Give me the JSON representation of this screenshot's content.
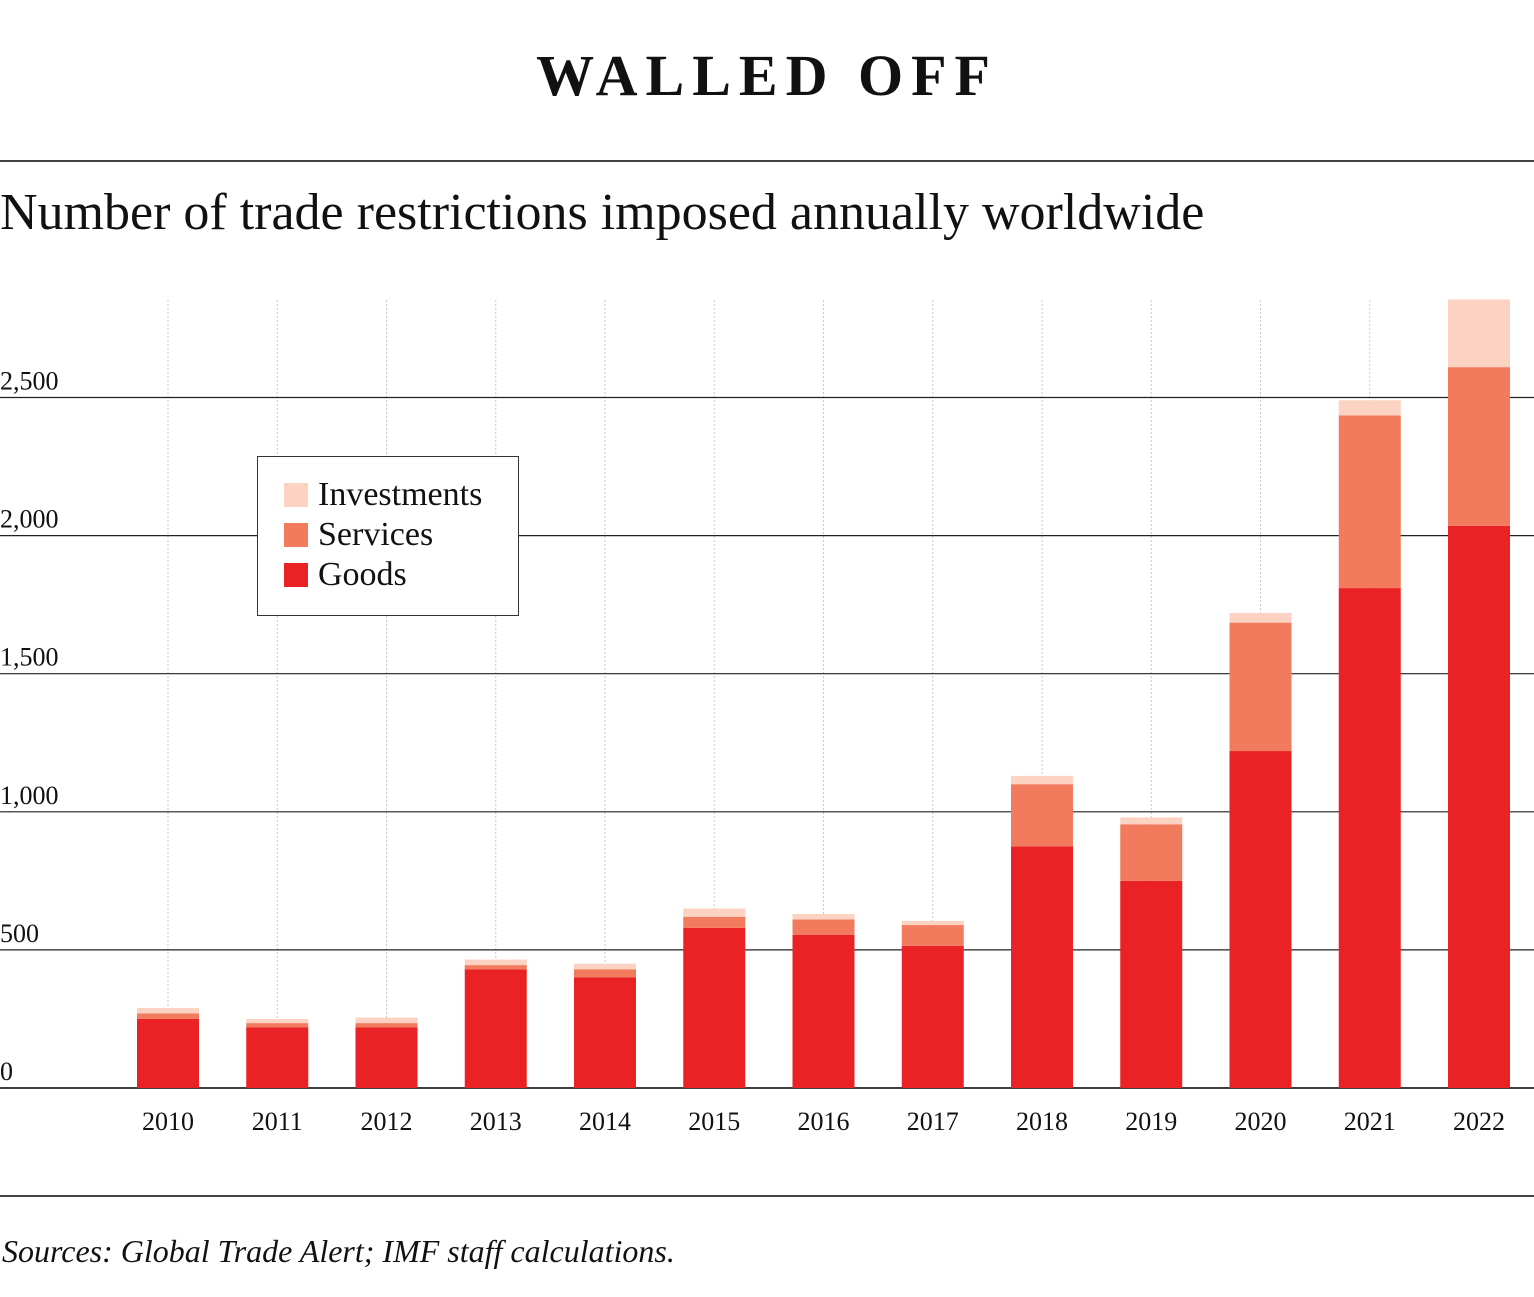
{
  "header": {
    "title": "WALLED OFF",
    "subtitle": "Number of trade restrictions imposed annually worldwide"
  },
  "footer": {
    "source": "Sources: Global Trade Alert; IMF staff calculations."
  },
  "colors": {
    "goods": "#ea2226",
    "services": "#f27b5d",
    "investments": "#fcd3c2",
    "grid": "#222222",
    "vgrid": "#c8c8c8"
  },
  "chart_data": {
    "type": "bar",
    "stacked": true,
    "categories": [
      "2010",
      "2011",
      "2012",
      "2013",
      "2014",
      "2015",
      "2016",
      "2017",
      "2018",
      "2019",
      "2020",
      "2021",
      "2022"
    ],
    "series": [
      {
        "name": "Goods",
        "values": [
          250,
          220,
          220,
          430,
          400,
          580,
          555,
          515,
          875,
          750,
          1220,
          1810,
          2035
        ]
      },
      {
        "name": "Services",
        "values": [
          20,
          15,
          15,
          15,
          30,
          40,
          55,
          75,
          225,
          205,
          465,
          625,
          575
        ]
      },
      {
        "name": "Investments",
        "values": [
          20,
          15,
          20,
          20,
          20,
          30,
          20,
          15,
          30,
          25,
          35,
          55,
          245
        ]
      }
    ],
    "yticks": [
      0,
      500,
      1000,
      1500,
      2000,
      2500
    ],
    "ytick_labels": [
      "0",
      "500",
      "1,000",
      "1,500",
      "2,000",
      "2,500"
    ],
    "ylim": [
      0,
      2850
    ],
    "legend_position": "upper-left",
    "grid": {
      "horizontal": true,
      "vertical": true
    }
  },
  "legend": {
    "items": [
      {
        "label": "Investments",
        "color": "#fcd3c2"
      },
      {
        "label": "Services",
        "color": "#f27b5d"
      },
      {
        "label": "Goods",
        "color": "#ea2226"
      }
    ]
  }
}
